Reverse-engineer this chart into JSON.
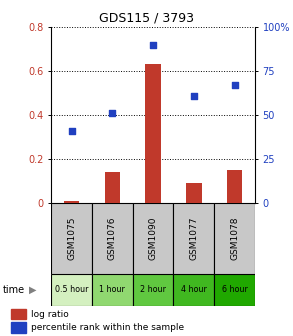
{
  "title": "GDS115 / 3793",
  "samples": [
    "GSM1075",
    "GSM1076",
    "GSM1090",
    "GSM1077",
    "GSM1078"
  ],
  "time_labels": [
    "0.5 hour",
    "1 hour",
    "2 hour",
    "4 hour",
    "6 hour"
  ],
  "log_ratio": [
    0.012,
    0.14,
    0.63,
    0.09,
    0.15
  ],
  "percentile": [
    41.0,
    51.0,
    90.0,
    61.0,
    67.0
  ],
  "bar_color": "#c0392b",
  "scatter_color": "#2040c0",
  "ylim_left": [
    0,
    0.8
  ],
  "ylim_right": [
    0,
    100
  ],
  "yticks_left": [
    0,
    0.2,
    0.4,
    0.6,
    0.8
  ],
  "yticks_right": [
    0,
    25,
    50,
    75,
    100
  ],
  "gsm_bg_color": "#c8c8c8",
  "time_bg_colors": [
    "#d4f0c0",
    "#90d870",
    "#60c840",
    "#40b820",
    "#20a800"
  ],
  "legend_log_ratio": "log ratio",
  "legend_percentile": "percentile rank within the sample"
}
